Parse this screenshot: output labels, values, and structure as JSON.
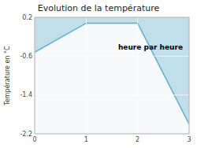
{
  "chart_data": {
    "type": "line",
    "title": "Evolution de la température",
    "ylabel": "Température en °C",
    "x": [
      0,
      1,
      2,
      3
    ],
    "values": [
      -0.52,
      0.08,
      0.08,
      -2.0
    ],
    "color": "#5ab0cc",
    "xlim": [
      0,
      3
    ],
    "ylim": [
      -2.2,
      0.2
    ],
    "xticks": [
      0,
      1,
      2,
      3
    ],
    "yticks": [
      0.2,
      -0.6,
      -1.4,
      -2.2
    ],
    "grid": true,
    "annotations": [
      {
        "text": "heure par heure",
        "x": 2.25,
        "y": -0.42
      }
    ]
  }
}
